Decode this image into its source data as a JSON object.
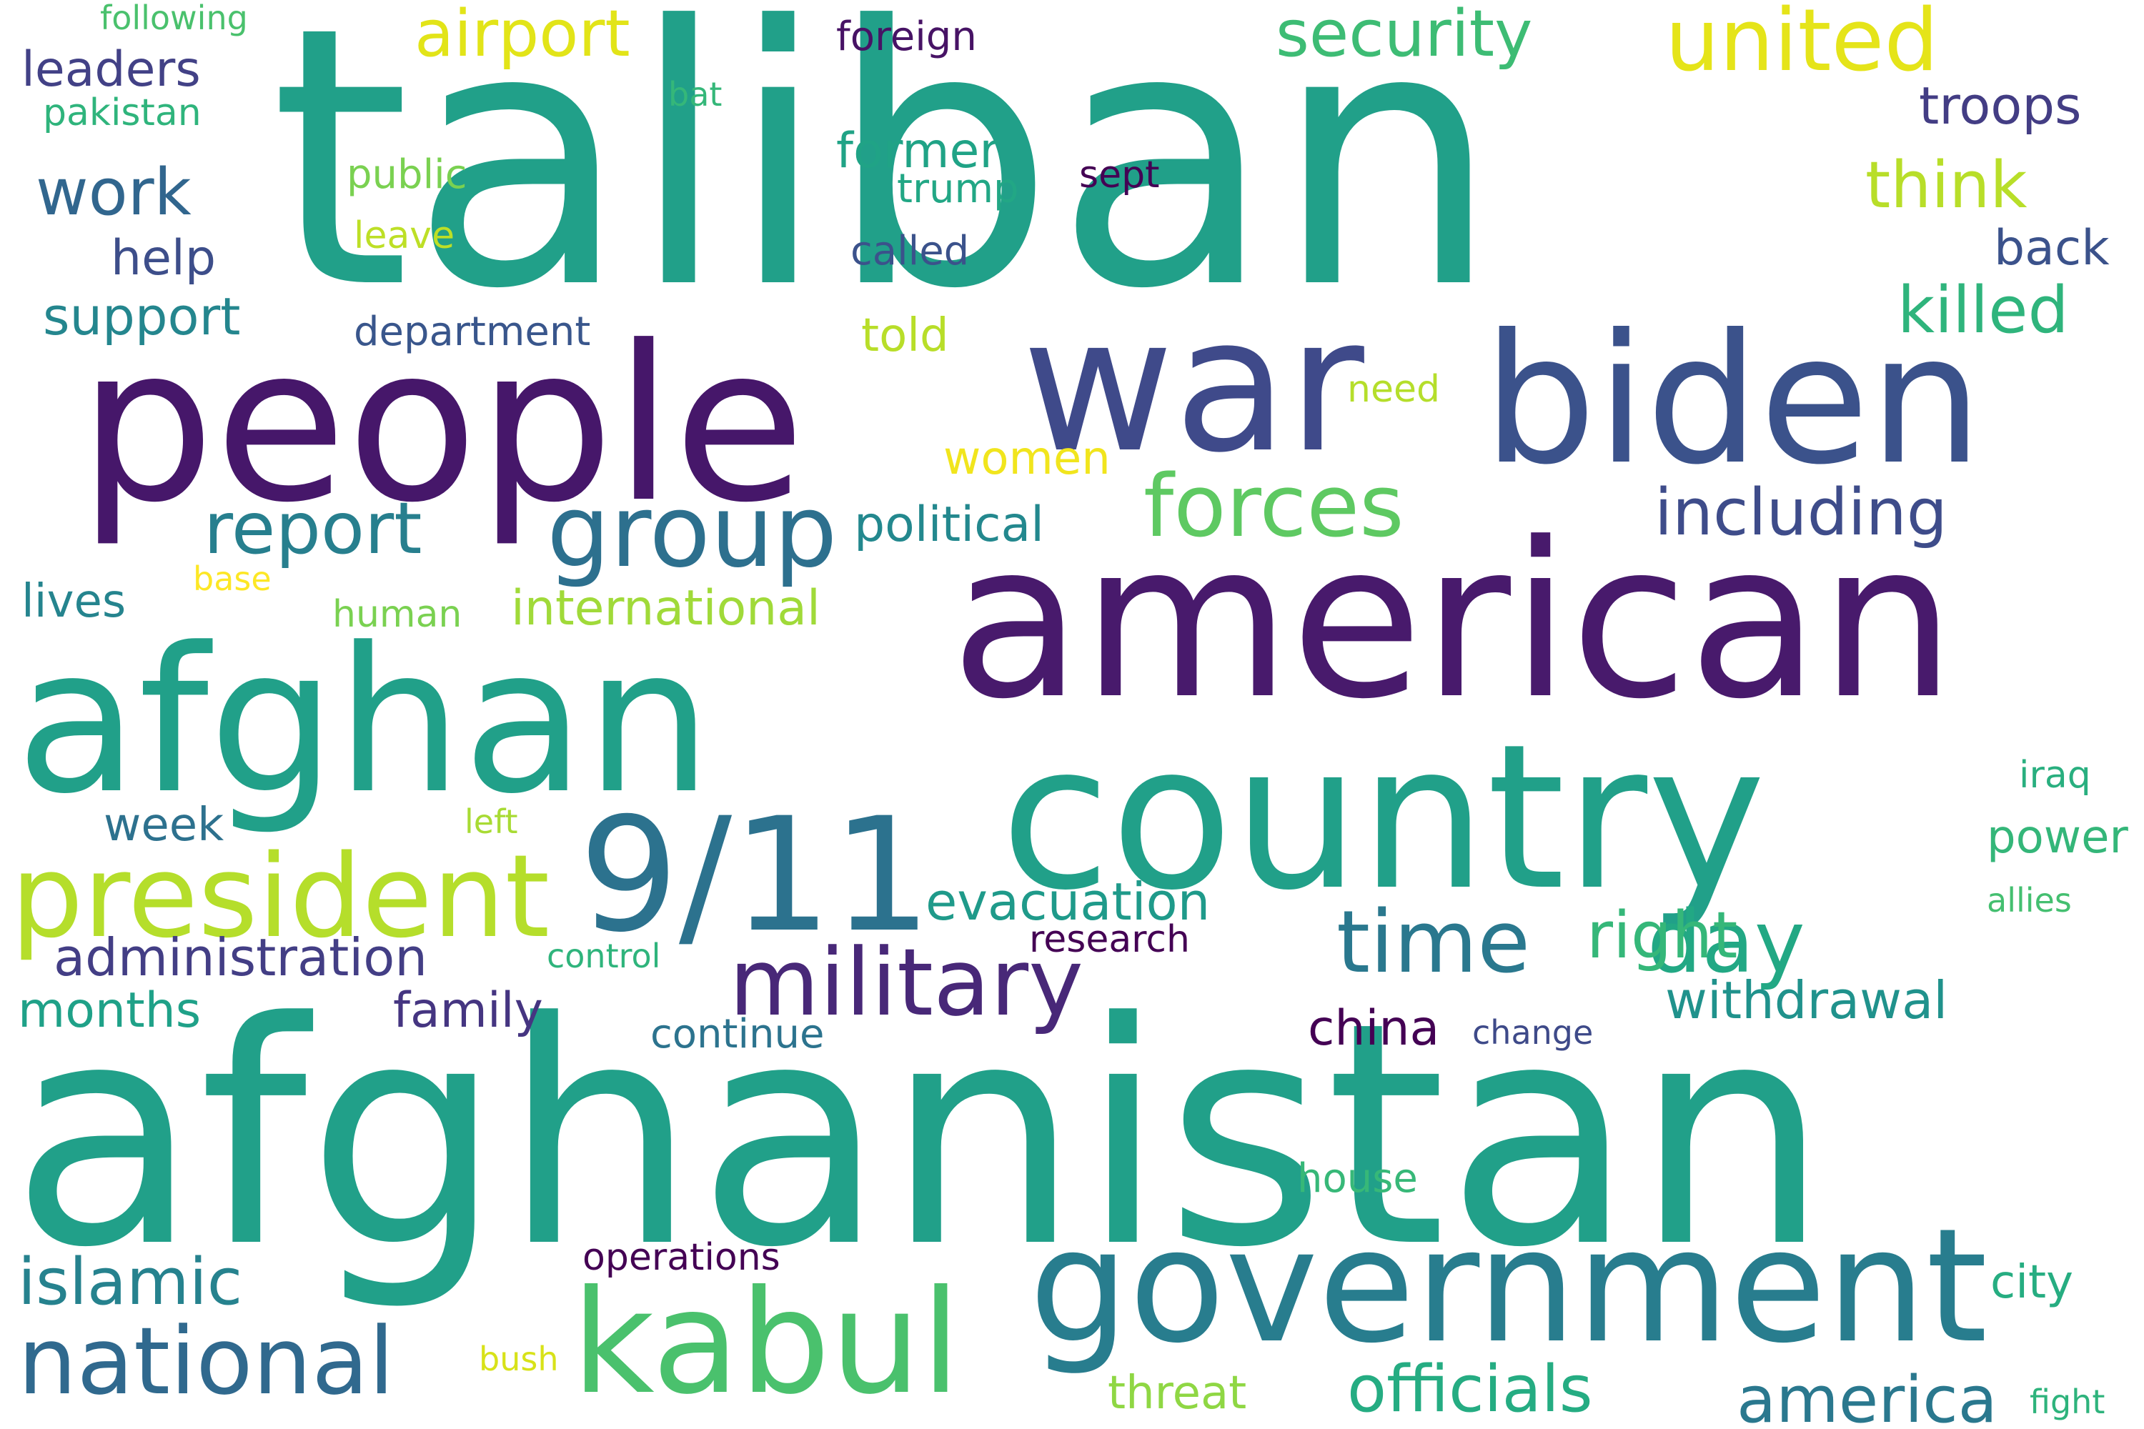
{
  "words": [
    {
      "text": "taliban",
      "color": "#21a089"
    },
    {
      "text": "afghanistan",
      "color": "#21a089"
    },
    {
      "text": "american",
      "color": "#481a6c"
    },
    {
      "text": "people",
      "color": "#46176a"
    },
    {
      "text": "afghan",
      "color": "#21a089"
    },
    {
      "text": "country",
      "color": "#21a089"
    },
    {
      "text": "war",
      "color": "#3f4a8a"
    },
    {
      "text": "biden",
      "color": "#3b528b"
    },
    {
      "text": "government",
      "color": "#287d8e"
    },
    {
      "text": "9/11",
      "color": "#2c728e"
    },
    {
      "text": "kabul",
      "color": "#4ac16d"
    },
    {
      "text": "president",
      "color": "#b5de2b"
    },
    {
      "text": "military",
      "color": "#482878"
    },
    {
      "text": "national",
      "color": "#30698e"
    },
    {
      "text": "group",
      "color": "#2d708e"
    },
    {
      "text": "forces",
      "color": "#5ec962"
    },
    {
      "text": "time",
      "color": "#2a788e"
    },
    {
      "text": "day",
      "color": "#22a884"
    },
    {
      "text": "united",
      "color": "#e5e419"
    },
    {
      "text": "report",
      "color": "#277f8e"
    },
    {
      "text": "officials",
      "color": "#25ac82"
    },
    {
      "text": "america",
      "color": "#2a788e"
    },
    {
      "text": "airport",
      "color": "#e2e418"
    },
    {
      "text": "security",
      "color": "#3dbc74"
    },
    {
      "text": "islamic",
      "color": "#26828e"
    },
    {
      "text": "right",
      "color": "#35b779"
    },
    {
      "text": "including",
      "color": "#3e4c8a"
    },
    {
      "text": "killed",
      "color": "#2fb47c"
    },
    {
      "text": "think",
      "color": "#b8de29"
    },
    {
      "text": "administration",
      "color": "#433e85"
    },
    {
      "text": "evacuation",
      "color": "#1f9a8a"
    },
    {
      "text": "withdrawal",
      "color": "#20928c"
    },
    {
      "text": "work",
      "color": "#31668e"
    },
    {
      "text": "troops",
      "color": "#433d84"
    },
    {
      "text": "support",
      "color": "#24868e"
    },
    {
      "text": "international",
      "color": "#a0da39"
    },
    {
      "text": "political",
      "color": "#23888e"
    },
    {
      "text": "former",
      "color": "#20a386"
    },
    {
      "text": "leaders",
      "color": "#424186"
    },
    {
      "text": "back",
      "color": "#3b528b"
    },
    {
      "text": "months",
      "color": "#1fa188"
    },
    {
      "text": "family",
      "color": "#453581"
    },
    {
      "text": "help",
      "color": "#3d4e8a"
    },
    {
      "text": "china",
      "color": "#440154"
    },
    {
      "text": "women",
      "color": "#f1e51d"
    },
    {
      "text": "power",
      "color": "#34b679"
    },
    {
      "text": "threat",
      "color": "#8fd744"
    },
    {
      "text": "city",
      "color": "#26ad81"
    },
    {
      "text": "week",
      "color": "#2d718e"
    },
    {
      "text": "lives",
      "color": "#25848e"
    },
    {
      "text": "told",
      "color": "#b8de29"
    },
    {
      "text": "department",
      "color": "#39568c"
    },
    {
      "text": "continue",
      "color": "#2c738e"
    },
    {
      "text": "operations",
      "color": "#440154"
    },
    {
      "text": "house",
      "color": "#37b878"
    },
    {
      "text": "research",
      "color": "#440154"
    },
    {
      "text": "called",
      "color": "#3b528b"
    },
    {
      "text": "trump",
      "color": "#22a785"
    },
    {
      "text": "sept",
      "color": "#440154"
    },
    {
      "text": "public",
      "color": "#7ad151"
    },
    {
      "text": "foreign",
      "color": "#471365"
    },
    {
      "text": "pakistan",
      "color": "#2fb47c"
    },
    {
      "text": "following",
      "color": "#4ac16d"
    },
    {
      "text": "bat",
      "color": "#35b779"
    },
    {
      "text": "leave",
      "color": "#bddf26"
    },
    {
      "text": "human",
      "color": "#7ad151"
    },
    {
      "text": "need",
      "color": "#b5de2b"
    },
    {
      "text": "base",
      "color": "#fde725"
    },
    {
      "text": "left",
      "color": "#a8db34"
    },
    {
      "text": "control",
      "color": "#2fb47c"
    },
    {
      "text": "change",
      "color": "#3e4a89"
    },
    {
      "text": "bush",
      "color": "#d8e219"
    },
    {
      "text": "iraq",
      "color": "#29af7f"
    },
    {
      "text": "allies",
      "color": "#44bf70"
    },
    {
      "text": "fight",
      "color": "#2eb37c"
    }
  ]
}
